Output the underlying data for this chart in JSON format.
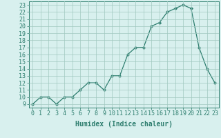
{
  "x": [
    0,
    1,
    2,
    3,
    4,
    5,
    6,
    7,
    8,
    9,
    10,
    11,
    12,
    13,
    14,
    15,
    16,
    17,
    18,
    19,
    20,
    21,
    22,
    23
  ],
  "y": [
    9,
    10,
    10,
    9,
    10,
    10,
    11,
    12,
    12,
    11,
    13,
    13,
    16,
    17,
    17,
    20,
    20.5,
    22,
    22.5,
    23,
    22.5,
    17,
    14,
    12
  ],
  "line_color": "#2d7d6e",
  "marker": "D",
  "marker_size": 2.2,
  "bg_color": "#d8f0ee",
  "grid_color": "#a0c8c0",
  "xlabel": "Humidex (Indice chaleur)",
  "xlabel_fontsize": 7,
  "tick_color": "#2d7d6e",
  "tick_fontsize": 6,
  "ylim": [
    8.5,
    23.5
  ],
  "xlim": [
    -0.5,
    23.5
  ],
  "yticks": [
    9,
    10,
    11,
    12,
    13,
    14,
    15,
    16,
    17,
    18,
    19,
    20,
    21,
    22,
    23
  ],
  "xticks": [
    0,
    1,
    2,
    3,
    4,
    5,
    6,
    7,
    8,
    9,
    10,
    11,
    12,
    13,
    14,
    15,
    16,
    17,
    18,
    19,
    20,
    21,
    22,
    23
  ]
}
